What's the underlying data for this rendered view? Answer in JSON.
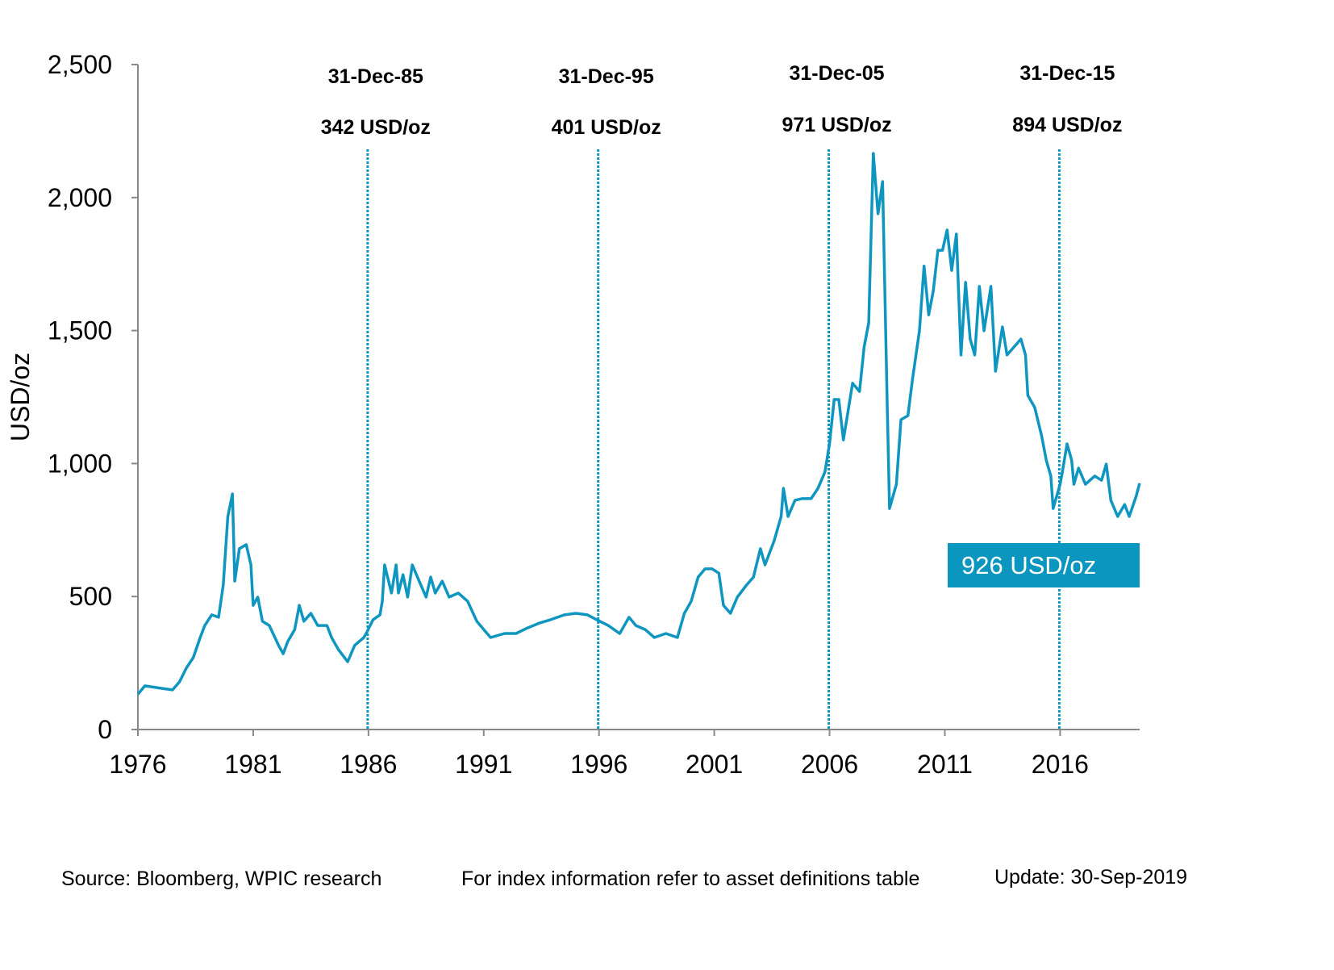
{
  "chart_data": {
    "type": "line",
    "title": "",
    "xlabel": "",
    "ylabel": "USD/oz",
    "xlim": [
      1976,
      2019.45
    ],
    "ylim": [
      0,
      2500
    ],
    "x_ticks": [
      1976,
      1981,
      1986,
      1991,
      1996,
      2001,
      2006,
      2011,
      2016
    ],
    "x_tick_labels": [
      "1976",
      "1981",
      "1986",
      "1991",
      "1996",
      "2001",
      "2006",
      "2011",
      "2016"
    ],
    "y_ticks": [
      0,
      500,
      1000,
      1500,
      2000,
      2500
    ],
    "y_tick_labels": [
      "0",
      "500",
      "1,000",
      "1,500",
      "2,000",
      "2,500"
    ],
    "grid": false,
    "line_color": "#0f96c0",
    "series": [
      {
        "x": [
          1976.0,
          1976.3,
          1977.0,
          1977.5,
          1977.8,
          1978.1,
          1978.4,
          1978.7,
          1978.9,
          1979.2,
          1979.5,
          1979.7,
          1979.9,
          1980.1,
          1980.2,
          1980.4,
          1980.7,
          1980.9,
          1981.0,
          1981.2,
          1981.4,
          1981.7,
          1982.1,
          1982.3,
          1982.5,
          1982.8,
          1983.0,
          1983.2,
          1983.5,
          1983.8,
          1984.2,
          1984.4,
          1984.7,
          1985.1,
          1985.4,
          1985.8,
          1985.9,
          1986.2,
          1986.5,
          1986.6,
          1986.7,
          1987.0,
          1987.2,
          1987.3,
          1987.5,
          1987.7,
          1987.9,
          1988.2,
          1988.5,
          1988.7,
          1988.9,
          1989.2,
          1989.5,
          1989.9,
          1990.3,
          1990.7,
          1991.0,
          1991.3,
          1991.9,
          1992.4,
          1992.9,
          1993.4,
          1993.9,
          1994.5,
          1995.0,
          1995.5,
          1995.9,
          1996.4,
          1996.9,
          1997.3,
          1997.6,
          1998.0,
          1998.4,
          1998.9,
          1999.4,
          1999.7,
          2000.0,
          2000.3,
          2000.6,
          2000.9,
          2001.2,
          2001.4,
          2001.7,
          2002.0,
          2002.4,
          2002.7,
          2003.0,
          2003.2,
          2003.6,
          2003.9,
          2004.0,
          2004.2,
          2004.5,
          2004.8,
          2005.2,
          2005.5,
          2005.8,
          2006.0,
          2006.2,
          2006.4,
          2006.6,
          2006.8,
          2007.0,
          2007.3,
          2007.5,
          2007.7,
          2007.9,
          2008.1,
          2008.3,
          2008.5,
          2008.6,
          2008.9,
          2009.1,
          2009.4,
          2009.6,
          2009.9,
          2010.1,
          2010.3,
          2010.5,
          2010.7,
          2010.9,
          2011.1,
          2011.3,
          2011.5,
          2011.7,
          2011.9,
          2012.1,
          2012.3,
          2012.5,
          2012.7,
          2013.0,
          2013.2,
          2013.5,
          2013.7,
          2014.0,
          2014.3,
          2014.5,
          2014.6,
          2014.9,
          2015.2,
          2015.4,
          2015.6,
          2015.7,
          2016.0,
          2016.1,
          2016.3,
          2016.5,
          2016.6,
          2016.8,
          2017.1,
          2017.5,
          2017.8,
          2018.0,
          2018.2,
          2018.5,
          2018.8,
          2019.0,
          2019.3,
          2019.45
        ],
        "values": [
          133,
          164,
          155,
          149,
          179,
          231,
          270,
          346,
          391,
          431,
          422,
          543,
          801,
          886,
          558,
          680,
          695,
          619,
          467,
          498,
          407,
          391,
          316,
          285,
          331,
          376,
          467,
          407,
          437,
          391,
          391,
          346,
          300,
          255,
          316,
          346,
          361,
          413,
          431,
          482,
          619,
          513,
          619,
          513,
          582,
          498,
          619,
          558,
          498,
          573,
          513,
          558,
          498,
          513,
          482,
          407,
          376,
          346,
          361,
          361,
          382,
          400,
          413,
          431,
          437,
          431,
          413,
          391,
          361,
          422,
          391,
          376,
          346,
          361,
          346,
          437,
          482,
          573,
          604,
          604,
          588,
          467,
          437,
          498,
          543,
          573,
          680,
          619,
          710,
          801,
          907,
          801,
          862,
          868,
          868,
          907,
          968,
          1074,
          1241,
          1241,
          1089,
          1195,
          1302,
          1271,
          1438,
          1529,
          2166,
          1939,
          2060,
          1226,
          831,
          922,
          1165,
          1180,
          1317,
          1499,
          1742,
          1559,
          1650,
          1802,
          1802,
          1878,
          1726,
          1863,
          1408,
          1681,
          1468,
          1408,
          1666,
          1499,
          1666,
          1347,
          1514,
          1408,
          1438,
          1468,
          1408,
          1256,
          1211,
          1104,
          1013,
          953,
          831,
          922,
          968,
          1074,
          1013,
          922,
          983,
          922,
          953,
          937,
          998,
          862,
          801,
          846,
          801,
          877,
          926
        ]
      }
    ],
    "markers": [
      {
        "x": 1986,
        "date": "31-Dec-85",
        "value": "342 USD/oz"
      },
      {
        "x": 1996,
        "date": "31-Dec-95",
        "value": "401 USD/oz"
      },
      {
        "x": 2006,
        "date": "31-Dec-05",
        "value": "971 USD/oz"
      },
      {
        "x": 2016,
        "date": "31-Dec-15",
        "value": "894 USD/oz"
      }
    ],
    "callout": "926 USD/oz"
  },
  "footer": {
    "source": "Source: Bloomberg, WPIC research",
    "note": "For index information refer to asset definitions table",
    "update": "Update: 30-Sep-2019"
  }
}
